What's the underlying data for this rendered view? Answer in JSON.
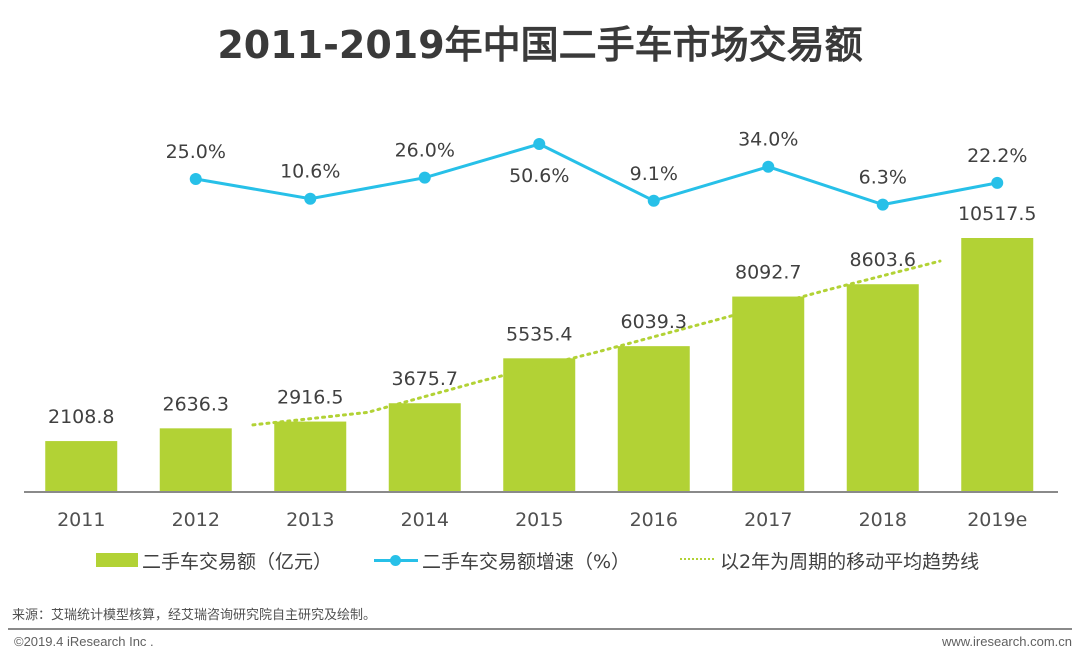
{
  "title": "2011-2019年中国二手车市场交易额",
  "colors": {
    "bar": "#b2d235",
    "line": "#27c0e8",
    "trend": "#b2d235",
    "axis": "#8a8a8a",
    "text": "#404040"
  },
  "chart_data": {
    "type": "bar",
    "title": "2011-2019年中国二手车市场交易额",
    "xlabel": "",
    "ylabel": "",
    "categories": [
      "2011",
      "2012",
      "2013",
      "2014",
      "2015",
      "2016",
      "2017",
      "2018",
      "2019e"
    ],
    "series": [
      {
        "name": "二手车交易额（亿元）",
        "type": "bar",
        "values": [
          2108.8,
          2636.3,
          2916.5,
          3675.7,
          5535.4,
          6039.3,
          8092.7,
          8603.6,
          10517.5
        ],
        "labels": [
          "2108.8",
          "2636.3",
          "2916.5",
          "3675.7",
          "5535.4",
          "6039.3",
          "8092.7",
          "8603.6",
          "10517.5"
        ]
      },
      {
        "name": "二手车交易额增速（%）",
        "type": "line",
        "categories": [
          "2012",
          "2013",
          "2014",
          "2015",
          "2016",
          "2017",
          "2018",
          "2019e"
        ],
        "values": [
          25.0,
          10.6,
          26.0,
          50.6,
          9.1,
          34.0,
          6.3,
          22.2
        ],
        "labels": [
          "25.0%",
          "10.6%",
          "26.0%",
          "50.6%",
          "9.1%",
          "34.0%",
          "6.3%",
          "22.2%"
        ]
      },
      {
        "name": "以2年为周期的移动平均趋势线",
        "type": "line",
        "style": "dotted",
        "values": [
          2372.55,
          2776.4,
          3296.1,
          4605.55,
          5787.35,
          7066.0,
          8348.15,
          9560.55
        ]
      }
    ],
    "ylim": [
      0,
      10517.5
    ],
    "grid": false,
    "axis_y_visible": false,
    "legend_position": "bottom"
  },
  "legend": [
    {
      "label": "二手车交易额（亿元）",
      "icon": "bar-swatch"
    },
    {
      "label": "二手车交易额增速（%）",
      "icon": "line-marker-swatch"
    },
    {
      "label": "以2年为周期的移动平均趋势线",
      "icon": "dotted-line-swatch"
    }
  ],
  "footer": {
    "source": "来源：艾瑞统计模型核算，经艾瑞咨询研究院自主研究及绘制。",
    "copyright": "©2019.4 iResearch Inc .",
    "website": "www.iresearch.com.cn"
  }
}
